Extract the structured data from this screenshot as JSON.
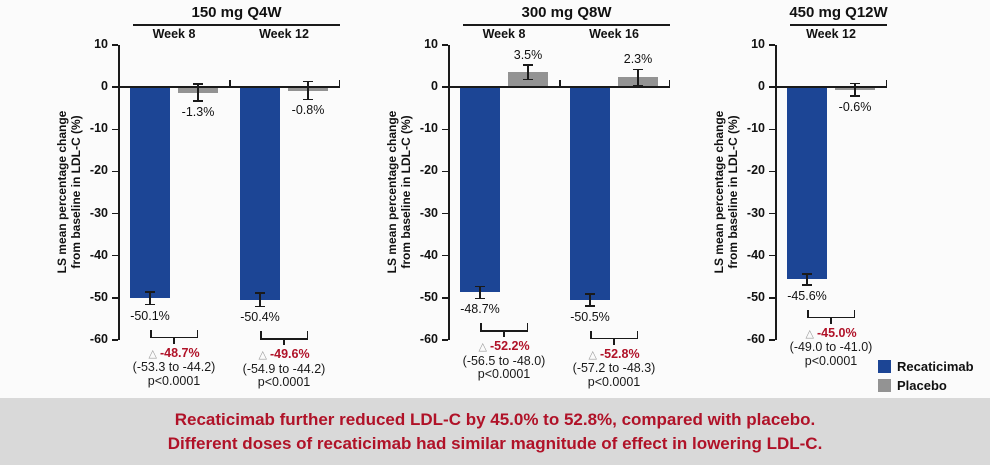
{
  "colors": {
    "recaticimab": "#1C4595",
    "placebo": "#939393",
    "delta_red": "#B01228",
    "banner_text": "#B01228",
    "banner_bg": "#D9D9D9",
    "axis": "#1a1a1a"
  },
  "legend": {
    "items": [
      {
        "label": "Recaticimab",
        "series": "recaticimab"
      },
      {
        "label": "Placebo",
        "series": "placebo"
      }
    ]
  },
  "banner": {
    "line1": "Recaticimab further reduced LDL-C by 45.0% to 52.8%, compared with placebo.",
    "line2": "Different doses of recaticimab had similar magnitude of effect in lowering LDL-C."
  },
  "chart_data": {
    "type": "bar",
    "ylabel": "LS mean percentage change\nfrom baseline in LDL-C (%)",
    "ylim": [
      -60,
      10
    ],
    "yticks": [
      10,
      0,
      -10,
      -20,
      -30,
      -40,
      -50,
      -60
    ],
    "grid": false,
    "legend_position": "bottom-right",
    "delta_symbol": "△",
    "series_names": [
      "Recaticimab",
      "Placebo"
    ],
    "panels": [
      {
        "title": "150 mg Q4W",
        "groups": [
          {
            "week": "Week 8",
            "recaticimab": {
              "value": -50.1,
              "label": "-50.1%",
              "err": 1.5
            },
            "placebo": {
              "value": -1.3,
              "label": "-1.3%",
              "err": 2.0
            },
            "comparison": {
              "delta": "-48.7%",
              "ci": "(-53.3 to -44.2)",
              "p": "p<0.0001"
            }
          },
          {
            "week": "Week 12",
            "recaticimab": {
              "value": -50.4,
              "label": "-50.4%",
              "err": 1.6
            },
            "placebo": {
              "value": -0.8,
              "label": "-0.8%",
              "err": 2.1
            },
            "comparison": {
              "delta": "-49.6%",
              "ci": "(-54.9 to -44.2)",
              "p": "p<0.0001"
            }
          }
        ]
      },
      {
        "title": "300 mg Q8W",
        "groups": [
          {
            "week": "Week 8",
            "recaticimab": {
              "value": -48.7,
              "label": "-48.7%",
              "err": 1.4
            },
            "placebo": {
              "value": 3.5,
              "label": "3.5%",
              "err": 1.7
            },
            "comparison": {
              "delta": "-52.2%",
              "ci": "(-56.5 to -48.0)",
              "p": "p<0.0001"
            }
          },
          {
            "week": "Week 16",
            "recaticimab": {
              "value": -50.5,
              "label": "-50.5%",
              "err": 1.4
            },
            "placebo": {
              "value": 2.3,
              "label": "2.3%",
              "err": 1.9
            },
            "comparison": {
              "delta": "-52.8%",
              "ci": "(-57.2 to -48.3)",
              "p": "p<0.0001"
            }
          }
        ]
      },
      {
        "title": "450 mg Q12W",
        "groups": [
          {
            "week": "Week 12",
            "recaticimab": {
              "value": -45.6,
              "label": "-45.6%",
              "err": 1.3
            },
            "placebo": {
              "value": -0.6,
              "label": "-0.6%",
              "err": 1.5
            },
            "comparison": {
              "delta": "-45.0%",
              "ci": "(-49.0 to -41.0)",
              "p": "p<0.0001"
            }
          }
        ]
      }
    ]
  }
}
